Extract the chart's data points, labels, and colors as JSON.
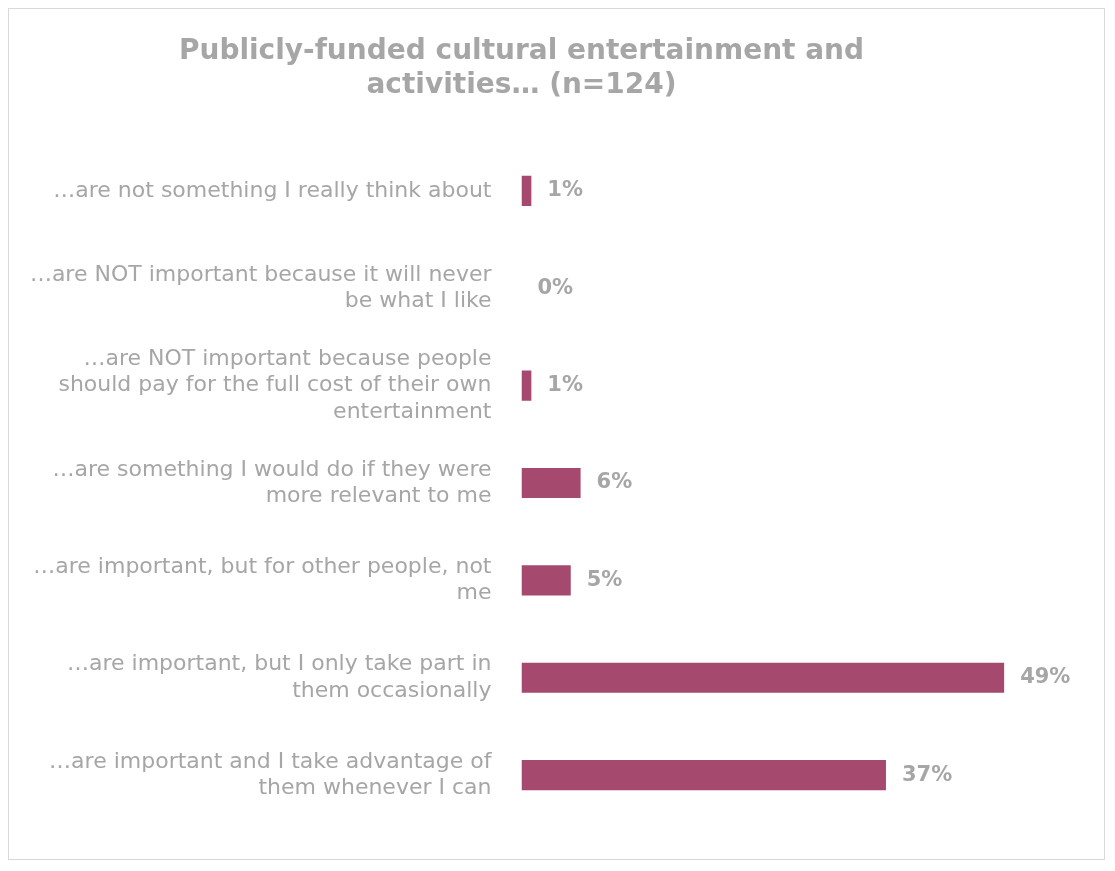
{
  "chart_data": {
    "type": "bar",
    "orientation": "horizontal",
    "title": "Publicly-funded cultural entertainment and activities… (n=124)",
    "categories": [
      "…are not something I really think about",
      "…are NOT important because it will never be what I like",
      "…are NOT important because people should pay for the full cost of their own entertainment",
      "…are something I would do if they were more relevant to me",
      "…are important, but for other people, not me",
      "…are important, but I only take part in them occasionally",
      "…are important and I take advantage of them whenever I can"
    ],
    "values": [
      1,
      0,
      1,
      6,
      5,
      49,
      37
    ],
    "value_labels": [
      "1%",
      "0%",
      "1%",
      "6%",
      "5%",
      "49%",
      "37%"
    ],
    "color": "#a5496f"
  }
}
